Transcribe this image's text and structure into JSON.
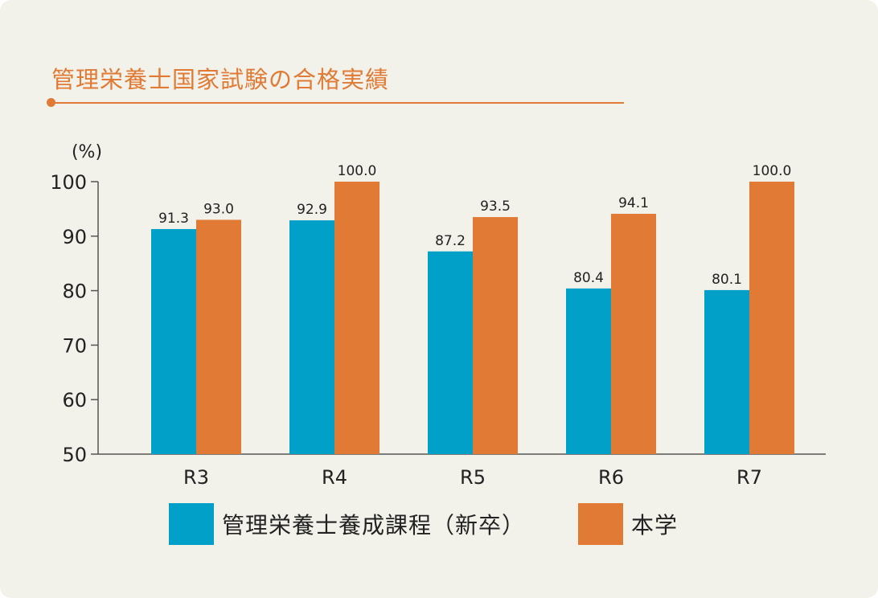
{
  "header": {
    "title": "管理栄養士国家試験の合格実績"
  },
  "colors": {
    "series1": "#00a0c8",
    "series2": "#e07a35",
    "accent": "#e07a35"
  },
  "chart_data": {
    "type": "bar",
    "title": "管理栄養士国家試験の合格実績",
    "ylabel": "(%)",
    "xlabel": "",
    "ylim": [
      50,
      100
    ],
    "yticks": [
      50,
      60,
      70,
      80,
      90,
      100
    ],
    "categories": [
      "R3",
      "R4",
      "R5",
      "R6",
      "R7"
    ],
    "series": [
      {
        "name": "管理栄養士養成課程（新卒）",
        "values": [
          91.3,
          92.9,
          87.2,
          80.4,
          80.1
        ],
        "labels": [
          "91.3",
          "92.9",
          "87.2",
          "80.4",
          "80.1"
        ]
      },
      {
        "name": "本学",
        "values": [
          93.0,
          100.0,
          93.5,
          94.1,
          100.0
        ],
        "labels": [
          "93.0",
          "100.0",
          "93.5",
          "94.1",
          "100.0"
        ]
      }
    ],
    "legend": "bottom",
    "grid": false
  }
}
